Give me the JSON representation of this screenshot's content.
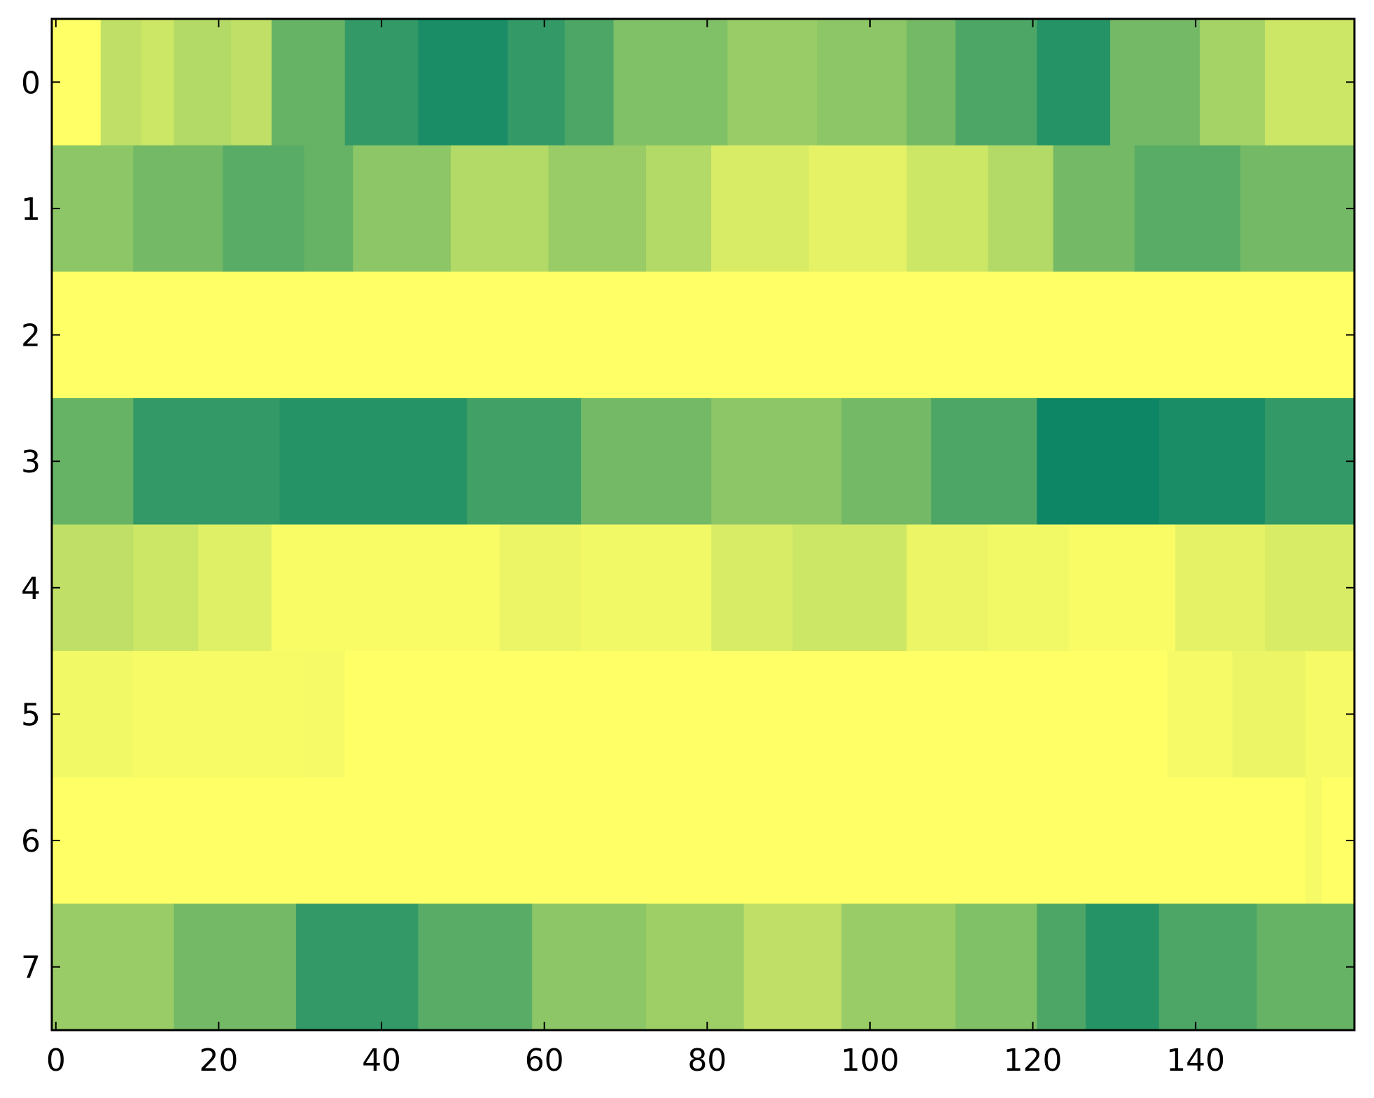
{
  "chart_data": {
    "type": "heatmap",
    "title": "",
    "xlabel": "",
    "ylabel": "",
    "colormap": "summer_r",
    "colorscale": {
      "low": "#ffff66",
      "high": "#008066"
    },
    "xlim": [
      -0.5,
      159.5
    ],
    "ylim": [
      -0.5,
      7.5
    ],
    "x_ticks": [
      0,
      20,
      40,
      60,
      80,
      100,
      120,
      140
    ],
    "y_ticks": [
      0,
      1,
      2,
      3,
      4,
      5,
      6,
      7
    ],
    "columns": 160,
    "rows": [
      {
        "row": 0,
        "segments": [
          [
            0,
            5,
            0.0
          ],
          [
            6,
            10,
            0.25
          ],
          [
            11,
            14,
            0.2
          ],
          [
            15,
            21,
            0.3
          ],
          [
            22,
            26,
            0.25
          ],
          [
            27,
            35,
            0.6
          ],
          [
            36,
            44,
            0.8
          ],
          [
            45,
            55,
            0.9
          ],
          [
            56,
            62,
            0.8
          ],
          [
            63,
            68,
            0.7
          ],
          [
            69,
            82,
            0.5
          ],
          [
            83,
            93,
            0.4
          ],
          [
            94,
            104,
            0.45
          ],
          [
            105,
            110,
            0.55
          ],
          [
            111,
            120,
            0.7
          ],
          [
            121,
            129,
            0.85
          ],
          [
            130,
            140,
            0.55
          ],
          [
            141,
            148,
            0.35
          ],
          [
            149,
            159,
            0.2
          ]
        ]
      },
      {
        "row": 1,
        "segments": [
          [
            0,
            9,
            0.45
          ],
          [
            10,
            20,
            0.55
          ],
          [
            21,
            30,
            0.65
          ],
          [
            31,
            36,
            0.6
          ],
          [
            37,
            48,
            0.45
          ],
          [
            49,
            60,
            0.3
          ],
          [
            61,
            72,
            0.4
          ],
          [
            73,
            80,
            0.3
          ],
          [
            81,
            92,
            0.15
          ],
          [
            93,
            104,
            0.1
          ],
          [
            105,
            114,
            0.2
          ],
          [
            115,
            122,
            0.3
          ],
          [
            123,
            132,
            0.55
          ],
          [
            133,
            145,
            0.65
          ],
          [
            146,
            159,
            0.55
          ]
        ]
      },
      {
        "row": 2,
        "segments": [
          [
            0,
            159,
            0.0
          ]
        ]
      },
      {
        "row": 3,
        "segments": [
          [
            0,
            9,
            0.6
          ],
          [
            10,
            27,
            0.8
          ],
          [
            28,
            50,
            0.85
          ],
          [
            51,
            64,
            0.75
          ],
          [
            65,
            80,
            0.55
          ],
          [
            81,
            96,
            0.45
          ],
          [
            97,
            107,
            0.55
          ],
          [
            108,
            120,
            0.7
          ],
          [
            121,
            135,
            0.95
          ],
          [
            136,
            148,
            0.9
          ],
          [
            149,
            159,
            0.8
          ]
        ]
      },
      {
        "row": 4,
        "segments": [
          [
            0,
            9,
            0.25
          ],
          [
            10,
            17,
            0.2
          ],
          [
            18,
            26,
            0.12
          ],
          [
            27,
            54,
            0.02
          ],
          [
            55,
            64,
            0.08
          ],
          [
            65,
            80,
            0.05
          ],
          [
            81,
            90,
            0.15
          ],
          [
            91,
            104,
            0.2
          ],
          [
            105,
            114,
            0.08
          ],
          [
            115,
            124,
            0.05
          ],
          [
            125,
            137,
            0.02
          ],
          [
            138,
            148,
            0.1
          ],
          [
            149,
            159,
            0.15
          ]
        ]
      },
      {
        "row": 5,
        "segments": [
          [
            0,
            9,
            0.05
          ],
          [
            10,
            30,
            0.03
          ],
          [
            31,
            35,
            0.04
          ],
          [
            36,
            136,
            0.0
          ],
          [
            137,
            144,
            0.04
          ],
          [
            145,
            153,
            0.08
          ],
          [
            154,
            159,
            0.04
          ]
        ]
      },
      {
        "row": 6,
        "segments": [
          [
            0,
            153,
            0.0
          ],
          [
            154,
            155,
            0.04
          ],
          [
            156,
            159,
            0.0
          ]
        ]
      },
      {
        "row": 7,
        "segments": [
          [
            0,
            14,
            0.4
          ],
          [
            15,
            29,
            0.55
          ],
          [
            30,
            44,
            0.8
          ],
          [
            45,
            58,
            0.65
          ],
          [
            59,
            72,
            0.45
          ],
          [
            73,
            84,
            0.38
          ],
          [
            85,
            96,
            0.25
          ],
          [
            97,
            110,
            0.4
          ],
          [
            111,
            120,
            0.5
          ],
          [
            121,
            126,
            0.7
          ],
          [
            127,
            135,
            0.85
          ],
          [
            136,
            147,
            0.7
          ],
          [
            148,
            159,
            0.6
          ]
        ]
      }
    ]
  }
}
